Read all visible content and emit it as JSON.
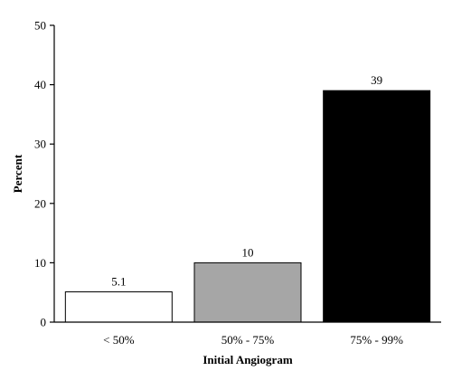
{
  "chart_data": {
    "type": "bar",
    "title": "",
    "xlabel": "Initial Angiogram",
    "ylabel": "Percent",
    "categories": [
      "< 50%",
      "50% - 75%",
      "75% - 99%"
    ],
    "values": [
      5.1,
      10,
      39
    ],
    "value_labels": [
      "5.1",
      "10",
      "39"
    ],
    "bar_colors": [
      "#ffffff",
      "#a6a6a6",
      "#000000"
    ],
    "ylim": [
      0,
      50
    ],
    "yticks": [
      0,
      10,
      20,
      30,
      40,
      50
    ],
    "grid": false,
    "legend": "none"
  }
}
